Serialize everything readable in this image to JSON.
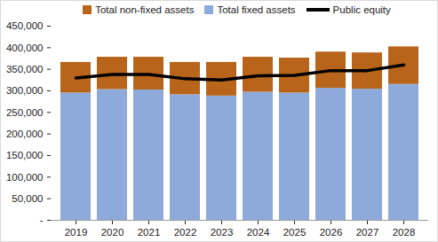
{
  "chart_data": {
    "type": "bar",
    "stacked": true,
    "grid": false,
    "legend": "top",
    "categories": [
      "2019",
      "2020",
      "2021",
      "2022",
      "2023",
      "2024",
      "2025",
      "2026",
      "2027",
      "2028"
    ],
    "series": [
      {
        "name": "Total non-fixed assets",
        "type": "bar",
        "color": "#b8651b",
        "values": [
          71000,
          75000,
          76000,
          75000,
          78000,
          81000,
          81000,
          84000,
          84000,
          87000
        ]
      },
      {
        "name": "Total fixed assets",
        "type": "bar",
        "color": "#8eaadb",
        "values": [
          295000,
          303000,
          302000,
          291000,
          288000,
          297000,
          295000,
          306000,
          304000,
          315000
        ]
      },
      {
        "name": "Public equity",
        "type": "line",
        "color": "#000000",
        "values": [
          330000,
          338000,
          338000,
          328000,
          325000,
          335000,
          336000,
          347000,
          347000,
          360000
        ]
      }
    ],
    "ylim": [
      0,
      450000
    ],
    "yticks": [
      {
        "value": 0,
        "label": "-"
      },
      {
        "value": 50000,
        "label": "50,000"
      },
      {
        "value": 100000,
        "label": "100,000"
      },
      {
        "value": 150000,
        "label": "150,000"
      },
      {
        "value": 200000,
        "label": "200,000"
      },
      {
        "value": 250000,
        "label": "250,000"
      },
      {
        "value": 300000,
        "label": "300,000"
      },
      {
        "value": 350000,
        "label": "350,000"
      },
      {
        "value": 400000,
        "label": "400,000"
      },
      {
        "value": 450000,
        "label": "450,000"
      }
    ]
  }
}
